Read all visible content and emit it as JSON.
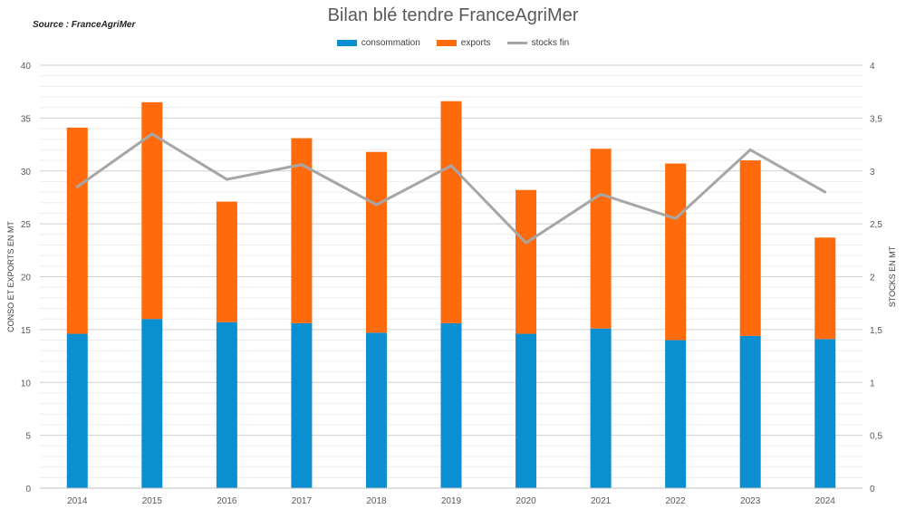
{
  "source": "Source : FranceAgriMer",
  "chart_data": {
    "type": "bar",
    "title": "Bilan blé tendre FranceAgriMer",
    "categories": [
      "2014",
      "2015",
      "2016",
      "2017",
      "2018",
      "2019",
      "2020",
      "2021",
      "2022",
      "2023",
      "2024"
    ],
    "series": [
      {
        "name": "consommation",
        "type": "stacked-bar",
        "axis": "left",
        "color": "#0B8FD1",
        "values": [
          14.6,
          16.0,
          15.7,
          15.6,
          14.7,
          15.6,
          14.6,
          15.1,
          14.0,
          14.4,
          14.1
        ]
      },
      {
        "name": "exports",
        "type": "stacked-bar",
        "axis": "left",
        "color": "#FF6A0C",
        "values": [
          19.5,
          20.5,
          11.4,
          17.5,
          17.1,
          21.0,
          13.6,
          17.0,
          16.7,
          16.6,
          9.6
        ]
      },
      {
        "name": "stocks fin",
        "type": "line",
        "axis": "right",
        "color": "#A6A6A6",
        "values": [
          2.85,
          3.35,
          2.92,
          3.06,
          2.68,
          3.05,
          2.32,
          2.78,
          2.55,
          3.2,
          2.8
        ]
      }
    ],
    "ylabel": "CONSO ET EXPORTS EN MT",
    "y2label": "STOCKS EN MT",
    "ylim": [
      0,
      40
    ],
    "y2lim": [
      0,
      4
    ],
    "yticks": [
      "0",
      "5",
      "10",
      "15",
      "20",
      "25",
      "30",
      "35",
      "40"
    ],
    "y2ticks": [
      "0",
      "0,5",
      "1",
      "1,5",
      "2",
      "2,5",
      "3",
      "3,5",
      "4"
    ],
    "grid": true,
    "legend": "top-center"
  }
}
